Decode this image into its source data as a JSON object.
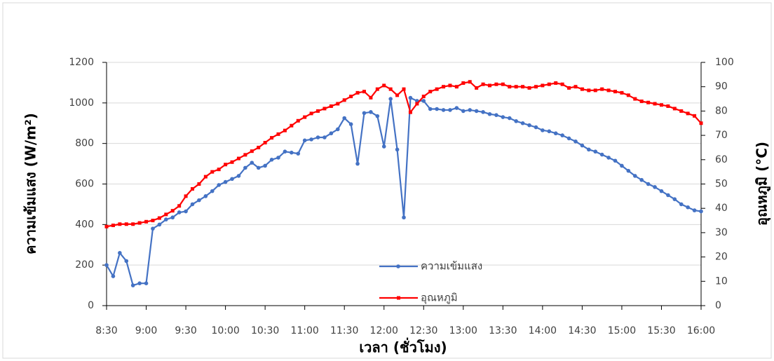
{
  "chart_data": {
    "type": "line",
    "x_label": "เวลา (ชั่วโมง)",
    "y_label": "ความเข้มแสง (W/m²)",
    "y2_label": "อุณหภูมิ (°C)",
    "categories": [
      "8:30",
      null,
      null,
      null,
      null,
      null,
      "9:00",
      null,
      null,
      null,
      null,
      null,
      "9:30",
      null,
      null,
      null,
      null,
      null,
      "10:00",
      null,
      null,
      null,
      null,
      null,
      "10:30",
      null,
      null,
      null,
      null,
      null,
      "11:00",
      null,
      null,
      null,
      null,
      null,
      "11:30",
      null,
      null,
      null,
      null,
      null,
      "12:00",
      null,
      null,
      null,
      null,
      null,
      "12:30",
      null,
      null,
      null,
      null,
      null,
      "13:00",
      null,
      null,
      null,
      null,
      null,
      "13:30",
      null,
      null,
      null,
      null,
      null,
      "14:00",
      null,
      null,
      null,
      null,
      null,
      "14:30",
      null,
      null,
      null,
      null,
      null,
      "15:00",
      null,
      null,
      null,
      null,
      null,
      "15:30",
      null,
      null,
      null,
      null,
      null,
      "16:00"
    ],
    "series": [
      {
        "name": "ความเข้มแสง",
        "color": "#4472c4",
        "marker": "circle",
        "values": [
          200,
          145,
          260,
          220,
          100,
          110,
          110,
          380,
          400,
          425,
          435,
          460,
          465,
          500,
          520,
          540,
          565,
          595,
          610,
          625,
          640,
          680,
          705,
          680,
          690,
          720,
          730,
          760,
          755,
          750,
          815,
          820,
          830,
          830,
          850,
          870,
          925,
          895,
          700,
          950,
          955,
          935,
          785,
          1020,
          770,
          435,
          1025,
          1010,
          1010,
          970,
          970,
          965,
          965,
          975,
          960,
          965,
          960,
          955,
          945,
          940,
          930,
          925,
          910,
          900,
          890,
          880,
          865,
          860,
          850,
          840,
          825,
          810,
          790,
          770,
          760,
          745,
          730,
          715,
          690,
          665,
          640,
          620,
          600,
          585,
          565,
          545,
          525,
          500,
          485,
          470,
          465
        ]
      },
      {
        "name": "อุณหภูมิ",
        "color": "#ff0000",
        "marker": "square",
        "axis": "y2",
        "values": [
          32.5,
          33,
          33.5,
          33.5,
          33.5,
          34,
          34.5,
          35,
          36,
          37.5,
          39,
          41,
          45,
          48,
          50,
          53,
          55,
          56,
          58,
          59,
          60.5,
          62,
          63.5,
          65,
          67,
          69,
          70.5,
          72,
          74,
          76,
          77.5,
          79,
          80,
          81,
          82,
          83,
          84.5,
          86,
          87.5,
          88,
          85.5,
          89,
          90.5,
          89,
          86.5,
          89,
          79.5,
          83,
          86,
          88,
          89,
          90,
          90.5,
          90,
          91.5,
          92,
          89.5,
          91,
          90.5,
          91,
          91,
          90,
          90,
          90,
          89.5,
          90,
          90.5,
          91,
          91.5,
          91,
          89.5,
          90,
          89,
          88.5,
          88.5,
          89,
          88.5,
          88,
          87.5,
          86.5,
          85,
          84,
          83.5,
          83,
          82.5,
          82,
          81,
          80,
          79,
          78,
          75
        ]
      }
    ],
    "ylim": [
      0,
      1200
    ],
    "yticks": [
      0,
      200,
      400,
      600,
      800,
      1000,
      1200
    ],
    "y2lim": [
      0,
      100
    ],
    "y2ticks": [
      0,
      10,
      20,
      30,
      40,
      50,
      60,
      70,
      80,
      90,
      100
    ],
    "grid": true
  }
}
